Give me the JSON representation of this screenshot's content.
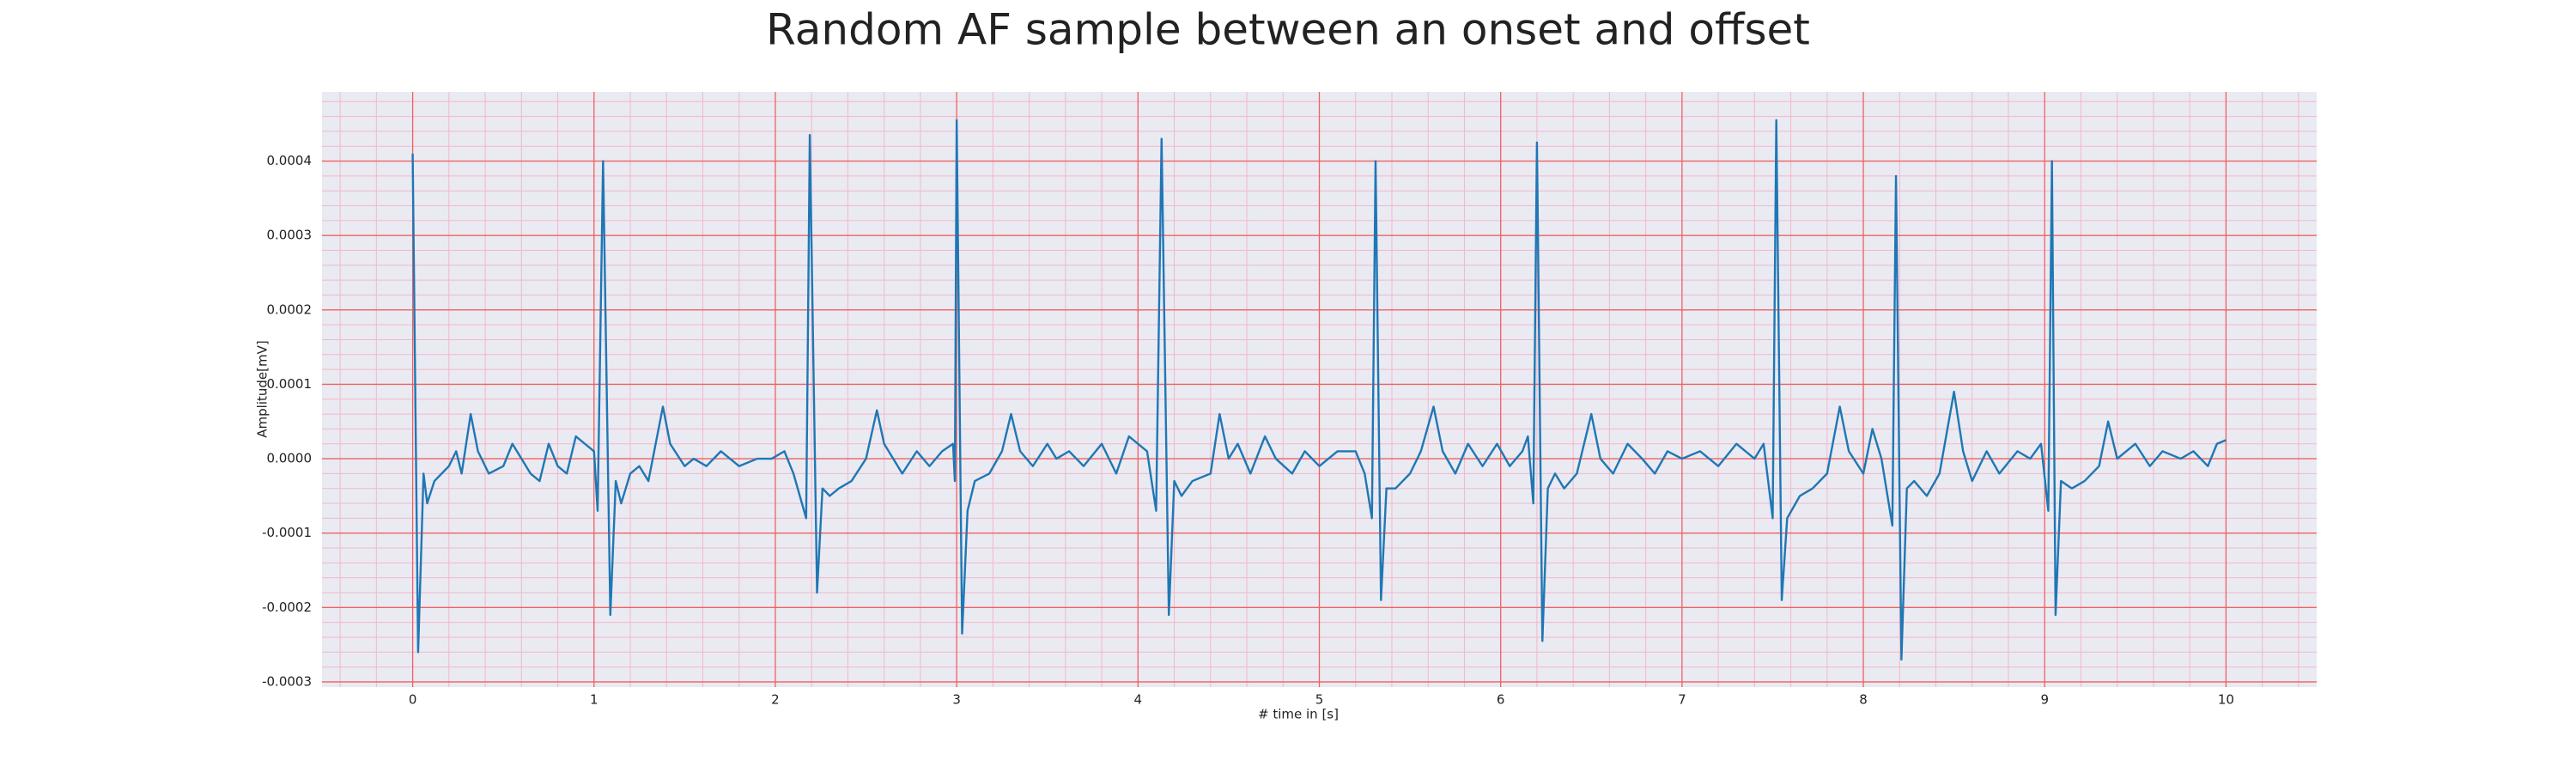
{
  "chart_data": {
    "type": "line",
    "title": "Random AF sample between an onset and offset",
    "x_label": "# time in [s]",
    "y_label": "Amplitude[mV]",
    "xlim": [
      -0.5,
      10.5
    ],
    "ylim": [
      -0.000307,
      0.000493
    ],
    "xticks": [
      0,
      1,
      2,
      3,
      4,
      5,
      6,
      7,
      8,
      9,
      10
    ],
    "yticks": [
      -0.0003,
      -0.0002,
      -0.0001,
      {
        "value": 0,
        "label": "0.0000"
      },
      0.0001,
      0.0002,
      0.0003,
      0.0004
    ],
    "minor_xticks": [
      -0.4,
      -0.2,
      0.2,
      0.4,
      0.6,
      0.8,
      1.2,
      1.4,
      1.6,
      1.8,
      2.2,
      2.4,
      2.6,
      2.8,
      3.2,
      3.4,
      3.6,
      3.8,
      4.2,
      4.4,
      4.6,
      4.8,
      5.2,
      5.4,
      5.6,
      5.8,
      6.2,
      6.4,
      6.6,
      6.8,
      7.2,
      7.4,
      7.6,
      7.8,
      8.2,
      8.4,
      8.6,
      8.8,
      9.2,
      9.4,
      9.6,
      9.8,
      10.2,
      10.4
    ],
    "minor_yticks": [
      -0.00028,
      -0.00026,
      -0.00024,
      -0.00022,
      -0.00018,
      -0.00016,
      -0.00014,
      -0.00012,
      -8e-05,
      -6e-05,
      -4e-05,
      -2e-05,
      2e-05,
      4e-05,
      6e-05,
      8e-05,
      0.00012,
      0.00014,
      0.00016,
      0.00018,
      0.00022,
      0.00024,
      0.00026,
      0.00028,
      0.00032,
      0.00034,
      0.00036,
      0.00038,
      0.00042,
      0.00044,
      0.00046,
      0.00048
    ],
    "grid": true,
    "grid_color": "#f06060",
    "minor_grid_color": "#f2b8c8",
    "background": "#eaeaf2",
    "series": [
      {
        "color": "#1f77b4",
        "x": [
          0,
          0.03,
          0.06,
          0.08,
          0.12,
          0.16,
          0.2,
          0.24,
          0.27,
          0.32,
          0.36,
          0.42,
          0.5,
          0.55,
          0.6,
          0.65,
          0.7,
          0.75,
          0.8,
          0.85,
          0.9,
          0.95,
          1.0,
          1.02,
          1.05,
          1.09,
          1.12,
          1.15,
          1.2,
          1.25,
          1.3,
          1.38,
          1.42,
          1.5,
          1.55,
          1.62,
          1.7,
          1.75,
          1.8,
          1.9,
          1.98,
          2.05,
          2.1,
          2.17,
          2.19,
          2.23,
          2.26,
          2.3,
          2.35,
          2.42,
          2.5,
          2.56,
          2.6,
          2.65,
          2.7,
          2.78,
          2.85,
          2.92,
          2.98,
          2.99,
          3.0,
          3.03,
          3.06,
          3.1,
          3.18,
          3.25,
          3.3,
          3.35,
          3.42,
          3.5,
          3.55,
          3.62,
          3.7,
          3.8,
          3.88,
          3.95,
          4.0,
          4.05,
          4.1,
          4.13,
          4.17,
          4.2,
          4.24,
          4.3,
          4.4,
          4.45,
          4.5,
          4.55,
          4.62,
          4.7,
          4.76,
          4.85,
          4.92,
          5.0,
          5.1,
          5.2,
          5.25,
          5.29,
          5.31,
          5.34,
          5.37,
          5.42,
          5.5,
          5.56,
          5.63,
          5.68,
          5.75,
          5.82,
          5.9,
          5.98,
          6.05,
          6.12,
          6.15,
          6.18,
          6.2,
          6.23,
          6.26,
          6.3,
          6.35,
          6.42,
          6.5,
          6.55,
          6.62,
          6.7,
          6.78,
          6.85,
          6.92,
          7.0,
          7.1,
          7.2,
          7.3,
          7.4,
          7.45,
          7.5,
          7.52,
          7.55,
          7.58,
          7.65,
          7.72,
          7.8,
          7.87,
          7.92,
          8.0,
          8.05,
          8.1,
          8.16,
          8.18,
          8.21,
          8.24,
          8.28,
          8.35,
          8.42,
          8.5,
          8.55,
          8.6,
          8.68,
          8.75,
          8.85,
          8.92,
          8.98,
          9.02,
          9.04,
          9.06,
          9.09,
          9.15,
          9.22,
          9.3,
          9.35,
          9.4,
          9.5,
          9.58,
          9.65,
          9.75,
          9.82,
          9.9,
          9.95,
          10.0
        ],
        "values": [
          0.00041,
          -0.00026,
          -2e-05,
          -6e-05,
          -3e-05,
          -2e-05,
          -1e-05,
          1e-05,
          -2e-05,
          6e-05,
          1e-05,
          -2e-05,
          -1e-05,
          2e-05,
          0.0,
          -2e-05,
          -3e-05,
          2e-05,
          -1e-05,
          -2e-05,
          3e-05,
          2e-05,
          1e-05,
          -7e-05,
          0.0004,
          -0.00021,
          -3e-05,
          -6e-05,
          -2e-05,
          -1e-05,
          -3e-05,
          7e-05,
          2e-05,
          -1e-05,
          0.0,
          -1e-05,
          1e-05,
          0.0,
          -1e-05,
          0.0,
          0.0,
          1e-05,
          -2e-05,
          -8e-05,
          0.000435,
          -0.00018,
          -4e-05,
          -5e-05,
          -4e-05,
          -3e-05,
          0.0,
          6.5e-05,
          2e-05,
          0.0,
          -2e-05,
          1e-05,
          -1e-05,
          1e-05,
          2e-05,
          -3e-05,
          0.000455,
          -0.000235,
          -7e-05,
          -3e-05,
          -2e-05,
          1e-05,
          6e-05,
          1e-05,
          -1e-05,
          2e-05,
          0.0,
          1e-05,
          -1e-05,
          2e-05,
          -2e-05,
          3e-05,
          2e-05,
          1e-05,
          -7e-05,
          0.00043,
          -0.00021,
          -3e-05,
          -5e-05,
          -3e-05,
          -2e-05,
          6e-05,
          0.0,
          2e-05,
          -2e-05,
          3e-05,
          0.0,
          -2e-05,
          1e-05,
          -1e-05,
          1e-05,
          1e-05,
          -2e-05,
          -8e-05,
          0.0004,
          -0.00019,
          -4e-05,
          -4e-05,
          -2e-05,
          1e-05,
          7e-05,
          1e-05,
          -2e-05,
          2e-05,
          -1e-05,
          2e-05,
          -1e-05,
          1e-05,
          3e-05,
          -6e-05,
          0.000425,
          -0.000245,
          -4e-05,
          -2e-05,
          -4e-05,
          -2e-05,
          6e-05,
          0.0,
          -2e-05,
          2e-05,
          0.0,
          -2e-05,
          1e-05,
          0.0,
          1e-05,
          -1e-05,
          2e-05,
          0.0,
          2e-05,
          -8e-05,
          0.000455,
          -0.00019,
          -8e-05,
          -5e-05,
          -4e-05,
          -2e-05,
          7e-05,
          1e-05,
          -2e-05,
          4e-05,
          0.0,
          -9e-05,
          0.00038,
          -0.00027,
          -4e-05,
          -3e-05,
          -5e-05,
          -2e-05,
          9e-05,
          1e-05,
          -3e-05,
          1e-05,
          -2e-05,
          1e-05,
          0.0,
          2e-05,
          -7e-05,
          0.0004,
          -0.00021,
          -3e-05,
          -4e-05,
          -3e-05,
          -1e-05,
          5e-05,
          0.0,
          2e-05,
          -1e-05,
          1e-05,
          0.0,
          1e-05,
          -1e-05,
          2e-05,
          2.5e-05
        ]
      }
    ]
  }
}
